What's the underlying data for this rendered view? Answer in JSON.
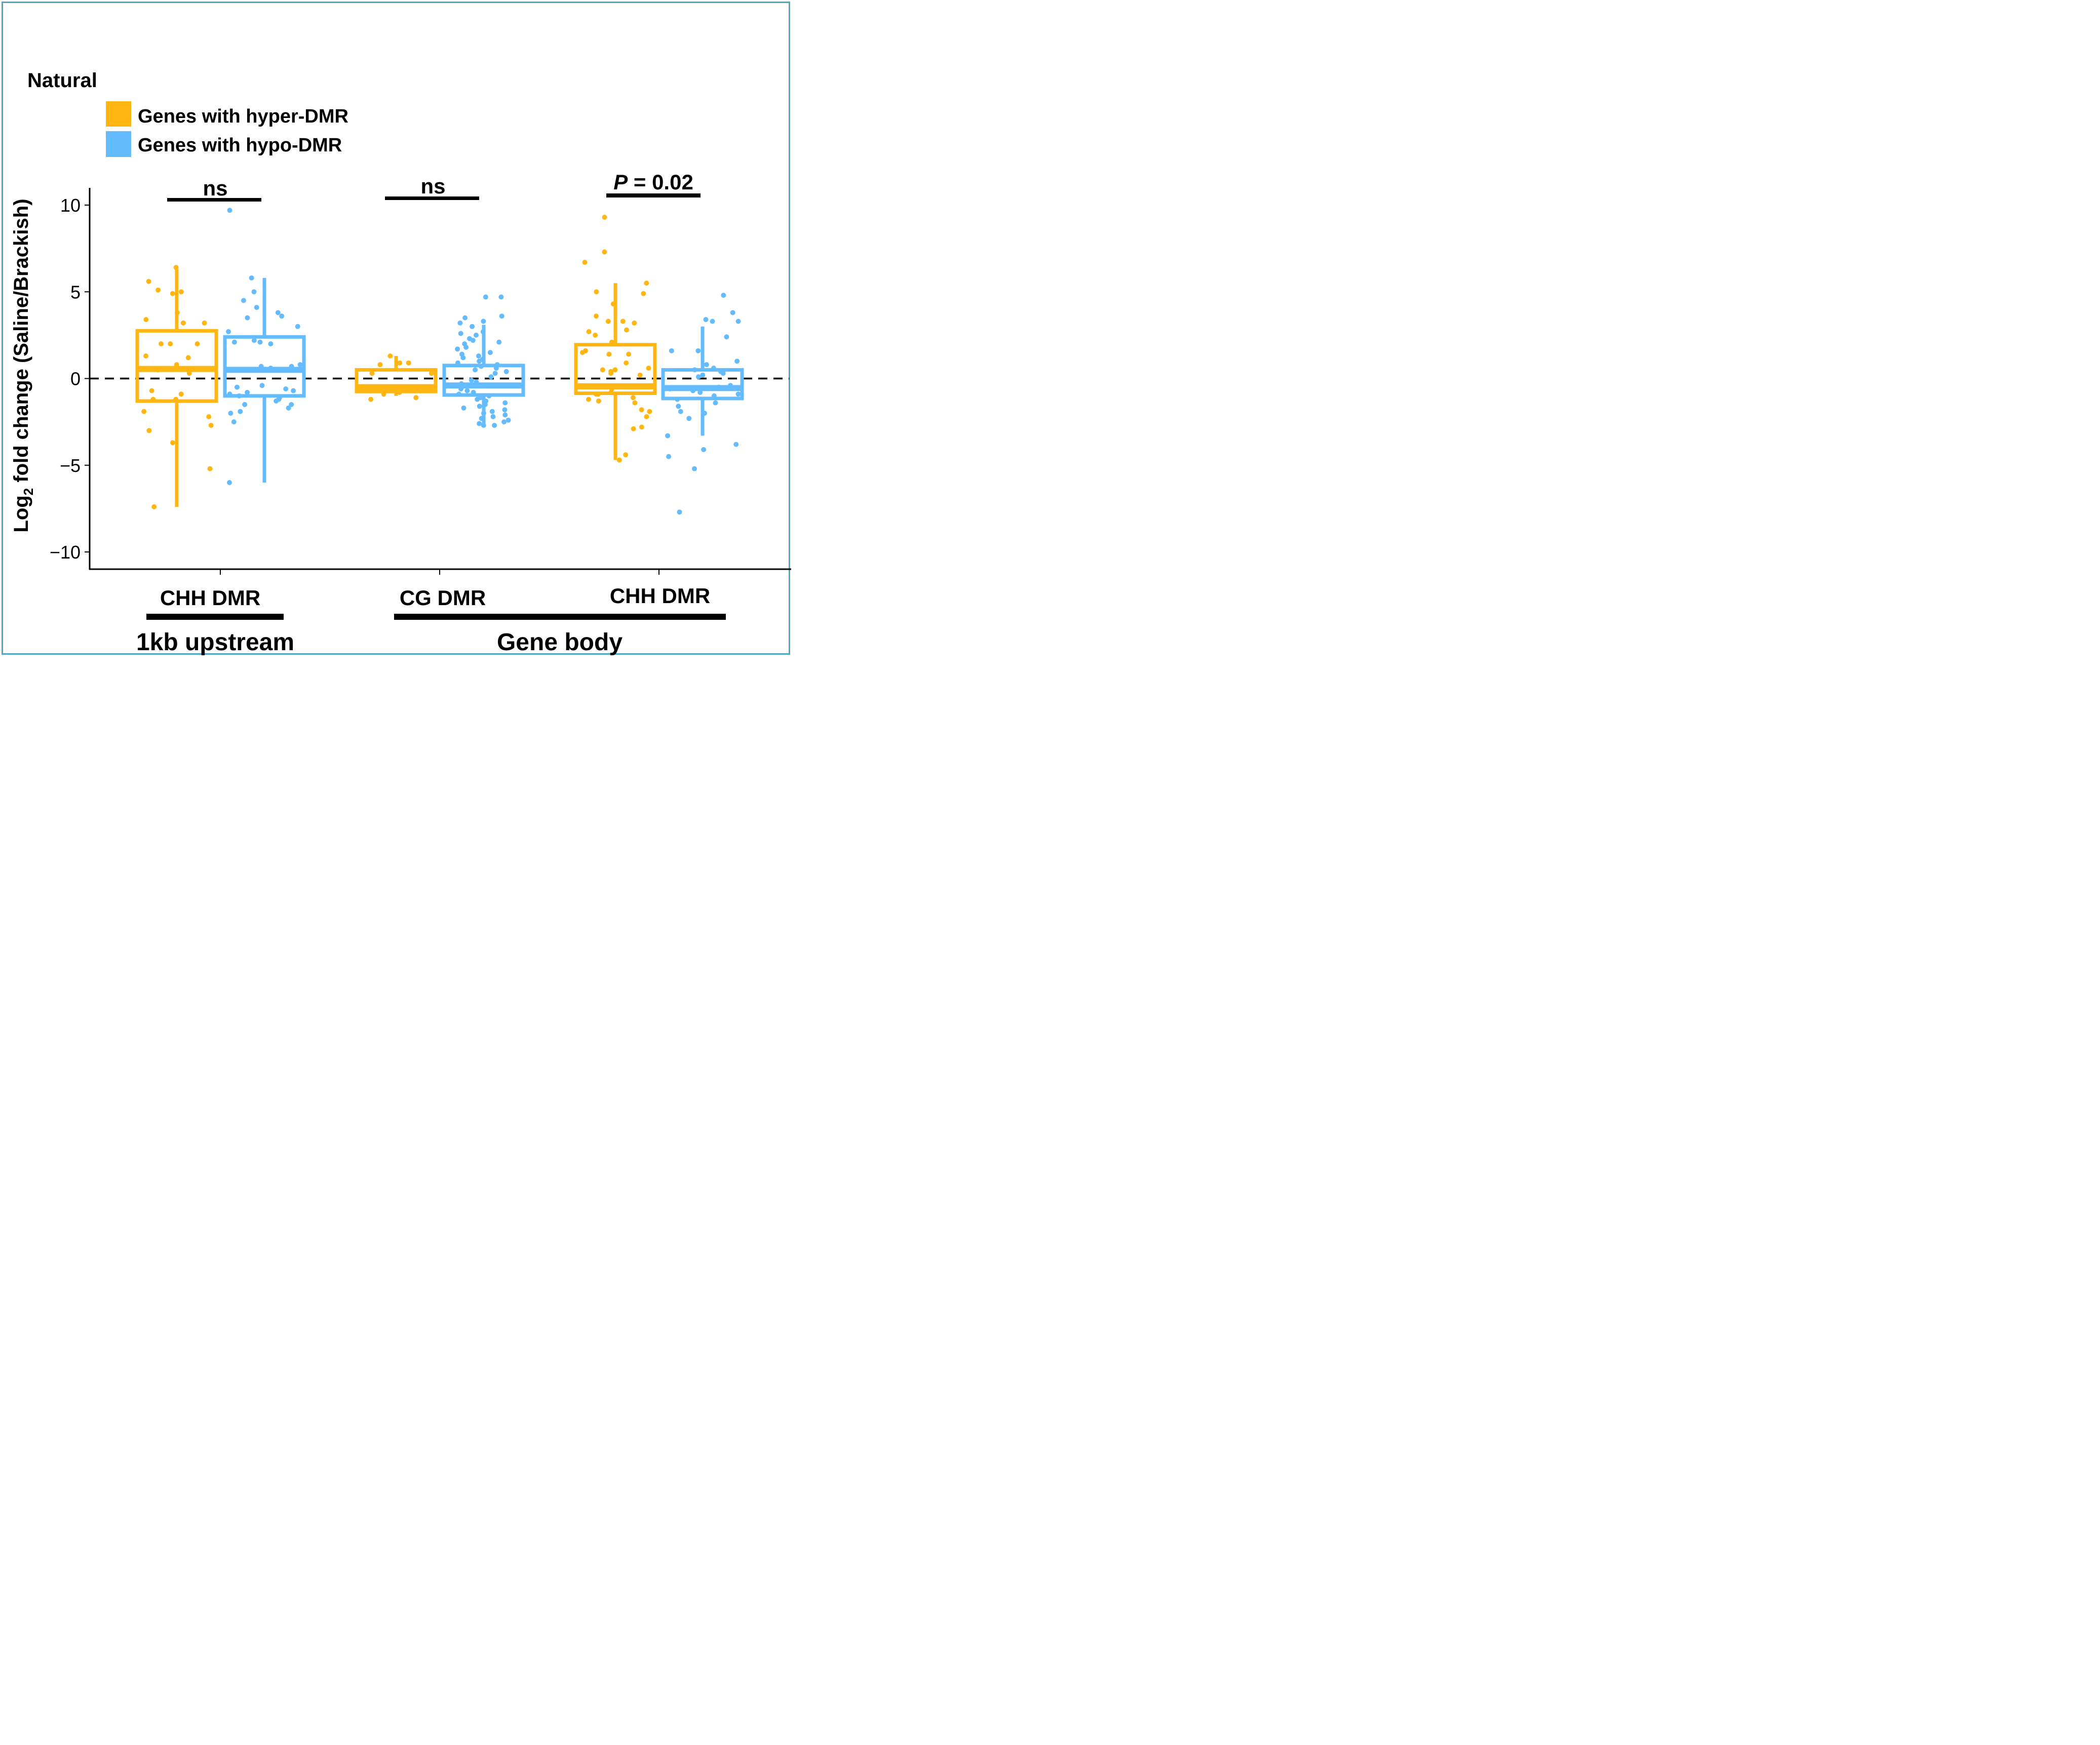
{
  "colors": {
    "hyper": "#FFB612",
    "hypo": "#64BBFD",
    "frame": "#4FA9C4",
    "axis": "#000000"
  },
  "chart_data": {
    "type": "box",
    "title": "Natural",
    "xlabel": "",
    "ylabel": "Log2 fold change (Saline/Brackish)",
    "ylabel_parts": {
      "prefix": "Log",
      "subscript": "2",
      "suffix": " fold change (Saline/Brackish)"
    },
    "ylim": [
      -11,
      11
    ],
    "yticks": [
      10,
      5,
      0,
      -5,
      -10
    ],
    "ytick_labels": [
      "10",
      "5",
      "0",
      "−5",
      "−10"
    ],
    "reference_line": {
      "y": 0,
      "style": "dashed"
    },
    "legend": {
      "position": "top-left",
      "title": "Natural",
      "entries": [
        {
          "key": "hyper",
          "label": "Genes with hyper-DMR"
        },
        {
          "key": "hypo",
          "label": "Genes with hypo-DMR"
        }
      ]
    },
    "categories": [
      "CHH DMR",
      "CG DMR",
      "CHH DMR"
    ],
    "category_groups": [
      {
        "label": "1kb upstream",
        "categories": [
          0
        ]
      },
      {
        "label": "Gene body",
        "categories": [
          1,
          2
        ]
      }
    ],
    "significance": [
      {
        "category": 0,
        "label": "ns"
      },
      {
        "category": 1,
        "label": "ns"
      },
      {
        "category": 2,
        "label_italic": "P",
        "label_rest": " = 0.02"
      }
    ],
    "series": [
      {
        "name": "Genes with hyper-DMR",
        "key": "hyper",
        "boxes": [
          {
            "whisker_low": -7.4,
            "q1": -1.3,
            "median": 0.55,
            "q3": 2.75,
            "whisker_high": 6.3
          },
          {
            "whisker_low": -1.0,
            "q1": -0.75,
            "median": -0.5,
            "q3": 0.5,
            "whisker_high": 1.3
          },
          {
            "whisker_low": -4.7,
            "q1": -0.85,
            "median": -0.45,
            "q3": 1.95,
            "whisker_high": 5.5
          }
        ],
        "points": [
          [
            6.4,
            5.0,
            5.6,
            5.1,
            4.9,
            3.8,
            3.4,
            3.2,
            3.2,
            2.0,
            2.0,
            2.0,
            1.2,
            1.3,
            0.8,
            0.5,
            0.3,
            -0.7,
            -0.9,
            -1.2,
            -1.2,
            -1.9,
            -2.2,
            -2.7,
            -3.0,
            -3.7,
            -5.2,
            -7.4
          ],
          [
            1.3,
            0.9,
            0.9,
            0.8,
            0.3,
            0.3,
            -0.6,
            -0.7,
            -0.8,
            -0.9,
            -1.2,
            -1.1
          ],
          [
            9.3,
            7.3,
            6.7,
            5.5,
            5.0,
            4.9,
            4.3,
            3.6,
            3.3,
            3.3,
            3.2,
            2.8,
            2.7,
            2.5,
            2.1,
            1.6,
            1.5,
            1.4,
            1.4,
            0.9,
            0.6,
            0.5,
            0.4,
            0.5,
            0.3,
            0.2,
            -0.6,
            -0.8,
            -0.9,
            -0.9,
            -1.1,
            -1.2,
            -1.3,
            -1.4,
            -1.8,
            -1.9,
            -2.2,
            -2.8,
            -2.9,
            -4.4,
            -4.7
          ]
        ]
      },
      {
        "name": "Genes with hypo-DMR",
        "key": "hypo",
        "boxes": [
          {
            "whisker_low": -6.0,
            "q1": -1.0,
            "median": 0.5,
            "q3": 2.4,
            "whisker_high": 5.8
          },
          {
            "whisker_low": -2.7,
            "q1": -0.95,
            "median": -0.4,
            "q3": 0.75,
            "whisker_high": 3.1
          },
          {
            "whisker_low": -3.3,
            "q1": -1.15,
            "median": -0.55,
            "q3": 0.5,
            "whisker_high": 3.0
          }
        ],
        "points": [
          [
            9.7,
            5.8,
            5.0,
            4.5,
            4.1,
            3.8,
            3.6,
            3.5,
            3.0,
            2.7,
            2.2,
            2.0,
            2.1,
            2.1,
            0.8,
            0.7,
            0.7,
            0.6,
            -0.4,
            -0.5,
            -0.6,
            -0.7,
            -0.8,
            -0.9,
            -1.0,
            -1.1,
            -1.2,
            -1.3,
            -1.5,
            -1.5,
            -1.7,
            -1.9,
            -2.0,
            -2.5,
            -6.0
          ],
          [
            4.7,
            4.7,
            3.6,
            3.5,
            3.3,
            3.2,
            3.0,
            2.7,
            2.6,
            2.5,
            2.3,
            2.2,
            2.1,
            2.0,
            1.8,
            1.7,
            1.5,
            1.4,
            1.3,
            1.2,
            1.1,
            1.0,
            0.9,
            0.8,
            0.7,
            0.6,
            0.5,
            0.4,
            0.3,
            0.1,
            -0.1,
            -0.2,
            -0.3,
            -0.4,
            -0.5,
            -0.6,
            -0.7,
            -0.8,
            -0.9,
            -1.0,
            -1.1,
            -1.2,
            -1.3,
            -1.4,
            -1.5,
            -1.6,
            -1.7,
            -1.8,
            -1.9,
            -2.0,
            -2.1,
            -2.2,
            -2.3,
            -2.4,
            -2.5,
            -2.6,
            -2.7,
            -2.7
          ],
          [
            4.8,
            3.8,
            3.4,
            3.3,
            3.3,
            2.4,
            1.6,
            1.6,
            1.0,
            0.8,
            0.6,
            0.5,
            0.4,
            0.3,
            0.2,
            0.1,
            -0.4,
            -0.5,
            -0.6,
            -0.7,
            -0.8,
            -0.9,
            -1.0,
            -1.2,
            -1.4,
            -1.6,
            -1.9,
            -2.0,
            -2.3,
            -3.3,
            -3.8,
            -4.1,
            -4.5,
            -5.2,
            -7.7
          ]
        ]
      }
    ]
  }
}
